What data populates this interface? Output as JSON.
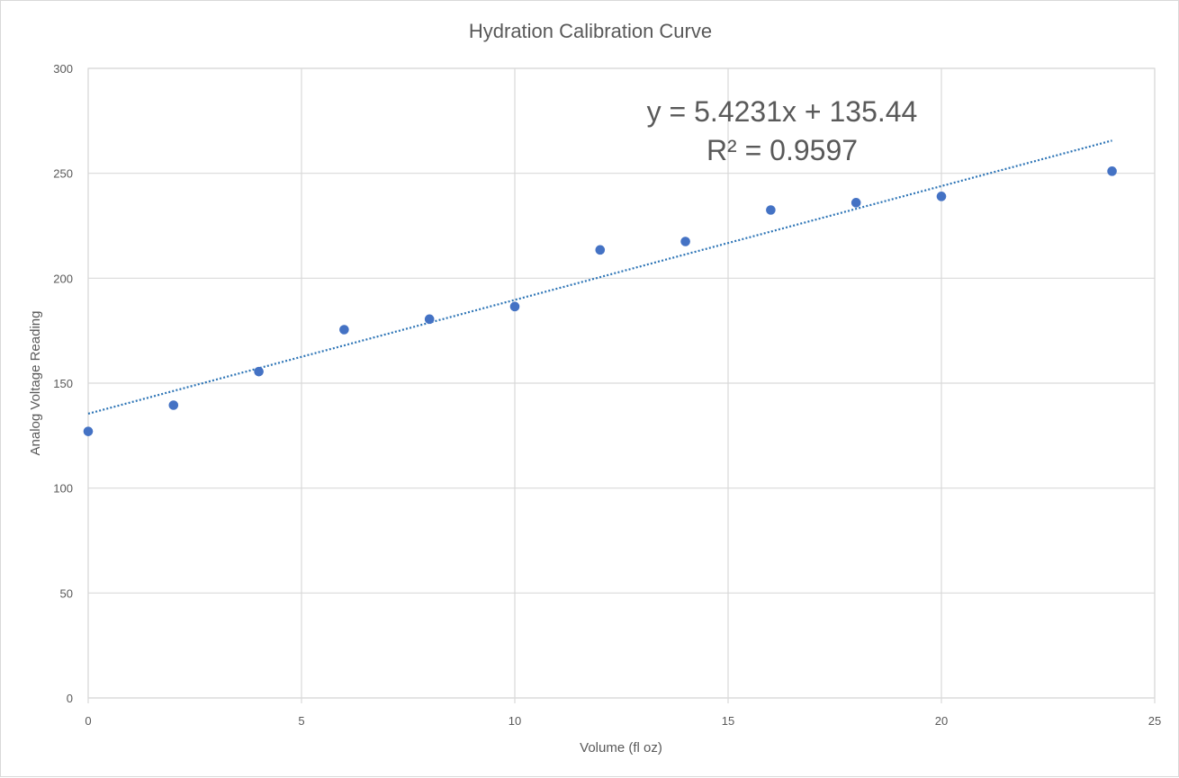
{
  "chart_data": {
    "type": "scatter",
    "title": "Hydration Calibration Curve",
    "xlabel": "Volume (fl oz)",
    "ylabel": "Analog Voltage Reading",
    "xlim": [
      0,
      25
    ],
    "ylim": [
      0,
      300
    ],
    "xticks": [
      0,
      5,
      10,
      15,
      20,
      25
    ],
    "yticks": [
      0,
      50,
      100,
      150,
      200,
      250,
      300
    ],
    "xtick_labels": [
      "0",
      "5",
      "10",
      "15",
      "20",
      "25"
    ],
    "ytick_labels": [
      "0",
      "50",
      "100",
      "150",
      "200",
      "250",
      "300"
    ],
    "grid": true,
    "marker_color": "#4472c4",
    "trendline_color": "#2e75b6",
    "series": [
      {
        "points": [
          {
            "x": 0,
            "y": 127
          },
          {
            "x": 2,
            "y": 139.5
          },
          {
            "x": 4,
            "y": 155.5
          },
          {
            "x": 6,
            "y": 175.5
          },
          {
            "x": 8,
            "y": 180.5
          },
          {
            "x": 10,
            "y": 186.5
          },
          {
            "x": 12,
            "y": 213.5
          },
          {
            "x": 14,
            "y": 217.5
          },
          {
            "x": 16,
            "y": 232.5
          },
          {
            "x": 18,
            "y": 236
          },
          {
            "x": 20,
            "y": 239
          },
          {
            "x": 24,
            "y": 251
          }
        ]
      }
    ],
    "trendline": {
      "type": "linear",
      "slope": 5.4231,
      "intercept": 135.44,
      "x_range": [
        0,
        24
      ],
      "equation_label": "y = 5.4231x + 135.44",
      "r_squared_label": "R² = 0.9597"
    }
  }
}
